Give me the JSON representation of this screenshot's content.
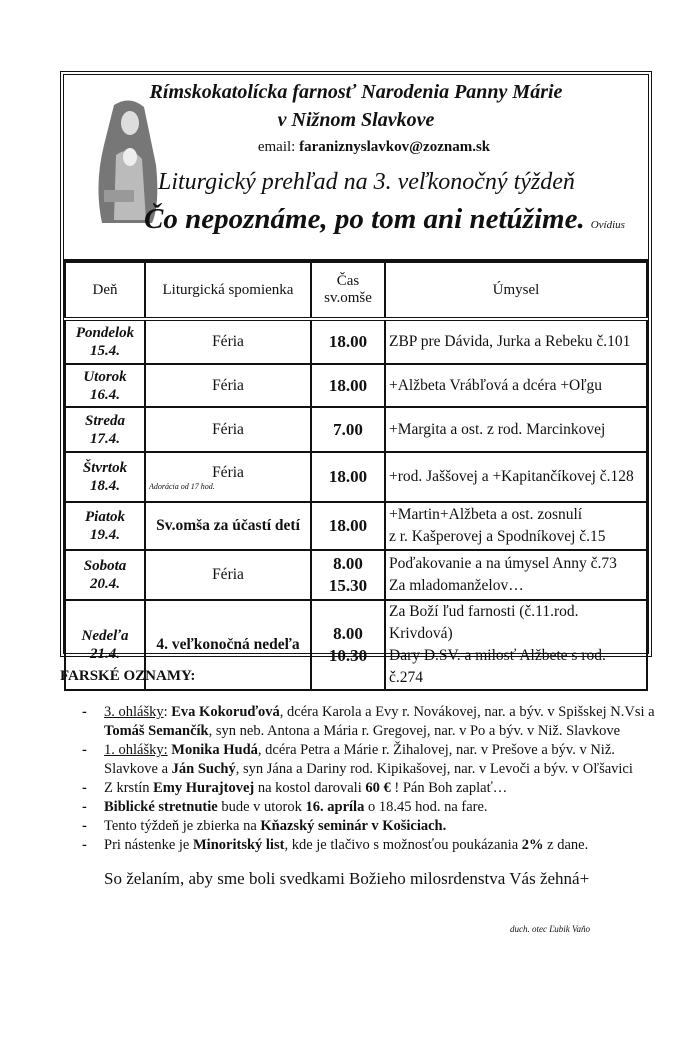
{
  "header": {
    "parish_line1": "Rímskokatolícka farnosť Narodenia Panny Márie",
    "parish_line2": "v Nižnom Slavkove",
    "email_label": "email:",
    "email": "faraniznyslavkov@zoznam.sk",
    "subtitle": "Liturgický prehľad na 3. veľkonočný týždeň",
    "motto": "Čo nepoznáme, po tom ani netúžime.",
    "motto_author": "Ovídius",
    "image_watermark": "catholic-tradition"
  },
  "table": {
    "headers": [
      "Deň",
      "Liturgická spomienka",
      "Čas sv.omše",
      "Úmysel"
    ],
    "rows": [
      {
        "day": "Pondelok",
        "date": "15.4.",
        "memorial": "Féria",
        "times": [
          "18.00"
        ],
        "intentions": [
          "ZBP pre Dávida, Jurka a Rebeku č.101"
        ]
      },
      {
        "day": "Utorok",
        "date": "16.4.",
        "memorial": "Féria",
        "times": [
          "18.00"
        ],
        "intentions": [
          "+Alžbeta Vrábľová a dcéra +Oľgu"
        ]
      },
      {
        "day": "Streda",
        "date": "17.4.",
        "memorial": "Féria",
        "times": [
          "7.00"
        ],
        "intentions": [
          "+Margita a ost.  z  rod. Marcinkovej"
        ]
      },
      {
        "day": "Štvrtok",
        "date": "18.4.",
        "memorial": "Féria",
        "note": "Adorácia od 17 hod.",
        "times": [
          "18.00"
        ],
        "intentions": [
          "+rod. Jaššovej a +Kapitančíkovej č.128"
        ]
      },
      {
        "day": "Piatok",
        "date": "19.4.",
        "memorial": "Sv.omša  za účastí detí",
        "memorial_bold": true,
        "times": [
          "18.00"
        ],
        "intentions": [
          "+Martin+Alžbeta a ost. zosnulí",
          "z  r. Kašperovej a Spodníkovej  č.15"
        ]
      },
      {
        "day": "Sobota",
        "date": "20.4.",
        "memorial": "Féria",
        "times": [
          "8.00",
          "15.30"
        ],
        "intentions": [
          "Poďakovanie a na úmysel Anny č.73",
          "Za mladomanželov…"
        ]
      },
      {
        "day": "Nedeľa",
        "date": "21.4.",
        "memorial": "4. veľkonočná nedeľa",
        "memorial_bold": true,
        "times": [
          "8.00",
          "10.30"
        ],
        "intentions": [
          "Za Boží ľud farnosti (č.11.rod. Krivdová)",
          "Dary D.SV. a milosť Alžbete s rod. č.274"
        ]
      }
    ]
  },
  "announcements": {
    "title": "FARSKÉ OZNAMY:",
    "items": [
      [
        {
          "t": "3. ohlášky",
          "u": true
        },
        {
          "t": ": "
        },
        {
          "t": "Eva Kokoruďová",
          "b": true
        },
        {
          "t": ", dcéra Karola a Evy r. Novákovej, nar. a býv. v Spišskej N.Vsi a "
        },
        {
          "t": "Tomáš Semančík",
          "b": true
        },
        {
          "t": ", syn neb. Antona a Mária r. Gregovej, nar. v Po a býv. v Niž. Slavkove"
        }
      ],
      [
        {
          "t": "1. ohlášky:",
          "u": true
        },
        {
          "t": " "
        },
        {
          "t": "Monika Hudá",
          "b": true
        },
        {
          "t": ", dcéra Petra a Márie r. Žihalovej, nar. v Prešove a býv. v Niž. Slavkove a "
        },
        {
          "t": "Ján Suchý",
          "b": true
        },
        {
          "t": ", syn Jána a Dariny rod. Kipikašovej, nar. v Levoči a býv. v Oľšavici"
        }
      ],
      [
        {
          "t": "Z krstín "
        },
        {
          "t": "Emy Hurajtovej",
          "b": true
        },
        {
          "t": " na kostol darovali "
        },
        {
          "t": "60 €",
          "b": true
        },
        {
          "t": " ! Pán Boh zaplať…"
        }
      ],
      [
        {
          "t": "Biblické stretnutie",
          "b": true
        },
        {
          "t": " bude v utorok "
        },
        {
          "t": "16. apríla",
          "b": true
        },
        {
          "t": " o 18.45 hod. na fare."
        }
      ],
      [
        {
          "t": "Tento týždeň je zbierka na "
        },
        {
          "t": "Kňazský seminár v Košiciach.",
          "b": true
        }
      ],
      [
        {
          "t": "Pri nástenke je "
        },
        {
          "t": "Minoritský list",
          "b": true
        },
        {
          "t": ", kde je tlačivo s možnosťou poukázania "
        },
        {
          "t": "2%",
          "b": true
        },
        {
          "t": " z dane."
        }
      ]
    ],
    "closing": "So želaním, aby sme boli svedkami Božieho milosrdenstva Vás žehná+",
    "signature": "duch. otec Ľubik Vaňo"
  }
}
